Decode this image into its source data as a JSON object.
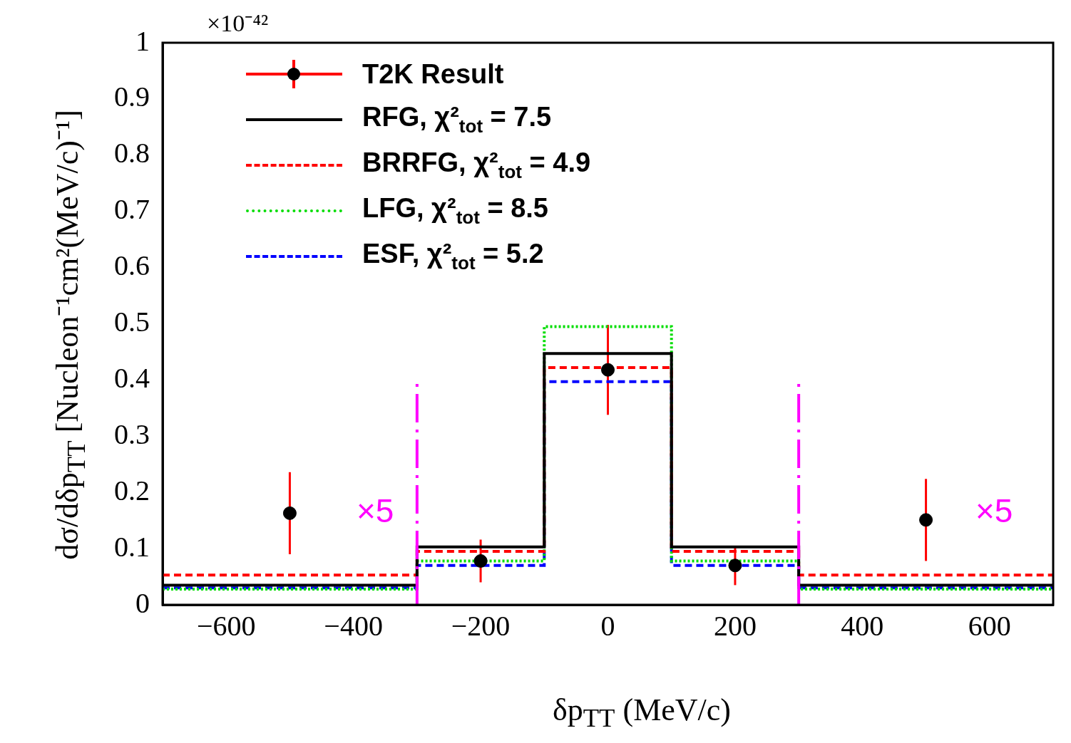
{
  "chart_data": {
    "type": "step",
    "xlabel": "δp$_{TT}$ (MeV/c)",
    "ylabel": "dσ/dδp$_{TT}$ [Nucleon⁻¹cm²(MeV/c)⁻¹]",
    "xlim": [
      -700,
      700
    ],
    "xticks": [
      -600,
      -400,
      -200,
      0,
      200,
      400,
      600
    ],
    "ylim": [
      0,
      1
    ],
    "yticks": [
      0,
      0.1,
      0.2,
      0.3,
      0.4,
      0.5,
      0.6,
      0.7,
      0.8,
      0.9,
      1
    ],
    "grid": false,
    "legend": "top left",
    "series": [
      {
        "name": "T2K Result",
        "type": "scatter",
        "color": "#000000",
        "marker": "circle",
        "x": [
          -500,
          -200,
          0,
          200,
          500
        ],
        "values": [
          0.163,
          0.078,
          0.418,
          0.07,
          0.151
        ],
        "errors": [
          0.073,
          0.038,
          0.08,
          0.035,
          0.073
        ]
      },
      {
        "name": "RFG, χ²$_{tot}$ = 7.5",
        "color": "#000000",
        "line_style": "solid",
        "x": [
          -700,
          -300,
          -100,
          100,
          300,
          700
        ],
        "values": [
          0.035,
          0.103,
          0.447,
          0.103,
          0.035,
          0.035
        ]
      },
      {
        "name": "BRRFG, χ²$_{tot}$ = 4.9",
        "color": "#ff0000",
        "line_style": "dashed",
        "x": [
          -700,
          -300,
          -100,
          100,
          300,
          700
        ],
        "values": [
          0.053,
          0.095,
          0.422,
          0.095,
          0.053,
          0.053
        ]
      },
      {
        "name": "LFG, χ²$_{tot}$ = 8.5",
        "color": "#00dd00",
        "line_style": "dotted",
        "x": [
          -700,
          -300,
          -100,
          100,
          300,
          700
        ],
        "values": [
          0.028,
          0.078,
          0.495,
          0.078,
          0.028,
          0.028
        ]
      },
      {
        "name": "ESF, χ²$_{tot}$ = 5.2",
        "color": "#0000ff",
        "line_style": "dashed",
        "x": [
          -700,
          -300,
          -100,
          100,
          300,
          700
        ],
        "values": [
          0.03,
          0.07,
          0.397,
          0.07,
          0.03,
          0.03
        ]
      }
    ],
    "ref_lines": [
      {
        "axis": "x",
        "value": -300,
        "color": "#ff00ff",
        "line_style": "dashed"
      },
      {
        "axis": "x",
        "value": 300,
        "color": "#ff00ff",
        "line_style": "dashed"
      }
    ],
    "annotations": [
      "×10⁻⁴²",
      "×5",
      "×5"
    ]
  }
}
